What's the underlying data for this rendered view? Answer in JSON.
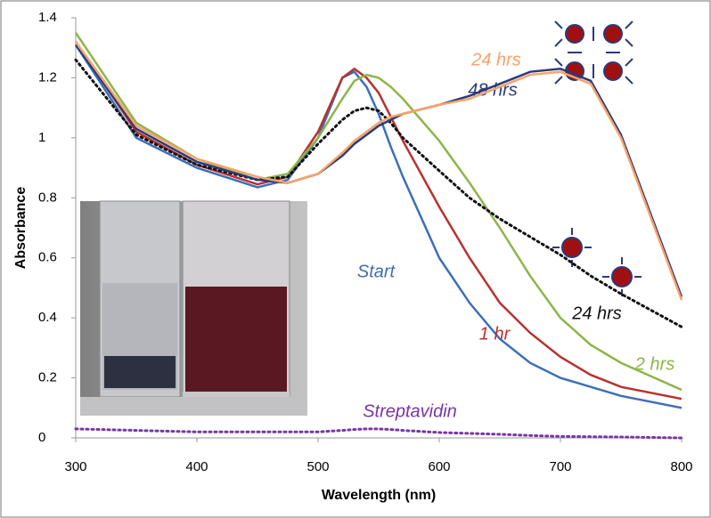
{
  "chart_data": {
    "type": "line",
    "x_label": "Wavelength (nm)",
    "y_label": "Absorbance",
    "x": [
      300,
      350,
      400,
      450,
      475,
      500,
      520,
      530,
      540,
      550,
      560,
      570,
      600,
      625,
      650,
      675,
      700,
      725,
      750,
      800
    ],
    "xlim": [
      300,
      800
    ],
    "xticks": [
      300,
      400,
      500,
      600,
      700,
      800
    ],
    "ylim": [
      0,
      1.4
    ],
    "yticks": [
      0,
      0.2,
      0.4,
      0.6,
      0.8,
      1,
      1.2,
      1.4
    ],
    "grid": false,
    "series": [
      {
        "name": "Start",
        "color": "#3d6fb6",
        "style": "solid",
        "values": [
          1.31,
          1.0,
          0.9,
          0.835,
          0.86,
          1.0,
          1.2,
          1.22,
          1.17,
          1.08,
          0.97,
          0.87,
          0.6,
          0.45,
          0.33,
          0.25,
          0.2,
          0.17,
          0.14,
          0.1
        ]
      },
      {
        "name": "1 hr",
        "color": "#b8322f",
        "style": "solid",
        "values": [
          1.32,
          1.02,
          0.91,
          0.845,
          0.87,
          1.02,
          1.2,
          1.23,
          1.2,
          1.15,
          1.07,
          0.99,
          0.77,
          0.6,
          0.45,
          0.35,
          0.27,
          0.21,
          0.17,
          0.13
        ]
      },
      {
        "name": "2 hrs",
        "color": "#8db54a",
        "style": "solid",
        "values": [
          1.35,
          1.05,
          0.93,
          0.86,
          0.88,
          1.0,
          1.13,
          1.19,
          1.21,
          1.2,
          1.17,
          1.13,
          0.99,
          0.85,
          0.7,
          0.54,
          0.4,
          0.31,
          0.25,
          0.16
        ]
      },
      {
        "name": "24 hrs",
        "color": "#111111",
        "style": "dotted",
        "values": [
          1.26,
          1.01,
          0.91,
          0.86,
          0.87,
          0.98,
          1.06,
          1.09,
          1.1,
          1.09,
          1.05,
          1.0,
          0.89,
          0.8,
          0.73,
          0.67,
          0.61,
          0.54,
          0.48,
          0.37
        ]
      },
      {
        "name": "48 hrs",
        "color": "#2b3a7c",
        "style": "solid",
        "values": [
          1.31,
          1.03,
          0.92,
          0.86,
          0.85,
          0.88,
          0.94,
          0.98,
          1.01,
          1.04,
          1.06,
          1.08,
          1.11,
          1.14,
          1.18,
          1.22,
          1.23,
          1.19,
          1.01,
          0.47
        ]
      },
      {
        "name": "24 hrs",
        "color": "#f6a468",
        "style": "solid",
        "values": [
          1.32,
          1.04,
          0.93,
          0.87,
          0.85,
          0.88,
          0.95,
          0.99,
          1.02,
          1.05,
          1.07,
          1.08,
          1.11,
          1.13,
          1.17,
          1.21,
          1.22,
          1.18,
          1.0,
          0.46
        ]
      },
      {
        "name": "Streptavidin",
        "color": "#7a35a8",
        "style": "dotted",
        "values": [
          0.03,
          0.025,
          0.02,
          0.02,
          0.02,
          0.02,
          0.025,
          0.028,
          0.03,
          0.03,
          0.028,
          0.025,
          0.018,
          0.015,
          0.012,
          0.008,
          0.005,
          0.004,
          0.003,
          0.0
        ]
      }
    ]
  }
}
